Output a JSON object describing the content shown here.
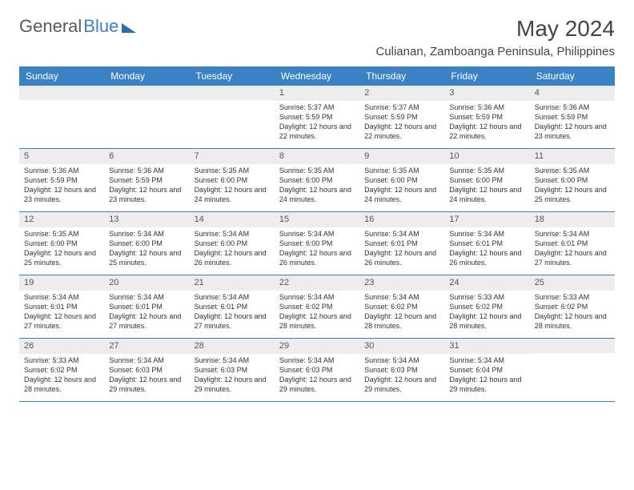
{
  "logo": {
    "text1": "General",
    "text2": "Blue"
  },
  "title": "May 2024",
  "location": "Culianan, Zamboanga Peninsula, Philippines",
  "weekdays": [
    "Sunday",
    "Monday",
    "Tuesday",
    "Wednesday",
    "Thursday",
    "Friday",
    "Saturday"
  ],
  "colors": {
    "header_bg": "#3b82c4",
    "daynum_bg": "#ededed",
    "text": "#333333",
    "logo_gray": "#5a5a5a",
    "logo_blue": "#3b82c4",
    "border": "#3b82c4"
  },
  "fonts": {
    "title_size": 28,
    "location_size": 15,
    "weekday_size": 12,
    "daynum_size": 11,
    "cell_size": 9
  },
  "weeks": [
    [
      {
        "num": "",
        "sunrise": "",
        "sunset": "",
        "daylight": ""
      },
      {
        "num": "",
        "sunrise": "",
        "sunset": "",
        "daylight": ""
      },
      {
        "num": "",
        "sunrise": "",
        "sunset": "",
        "daylight": ""
      },
      {
        "num": "1",
        "sunrise": "Sunrise: 5:37 AM",
        "sunset": "Sunset: 5:59 PM",
        "daylight": "Daylight: 12 hours and 22 minutes."
      },
      {
        "num": "2",
        "sunrise": "Sunrise: 5:37 AM",
        "sunset": "Sunset: 5:59 PM",
        "daylight": "Daylight: 12 hours and 22 minutes."
      },
      {
        "num": "3",
        "sunrise": "Sunrise: 5:36 AM",
        "sunset": "Sunset: 5:59 PM",
        "daylight": "Daylight: 12 hours and 22 minutes."
      },
      {
        "num": "4",
        "sunrise": "Sunrise: 5:36 AM",
        "sunset": "Sunset: 5:59 PM",
        "daylight": "Daylight: 12 hours and 23 minutes."
      }
    ],
    [
      {
        "num": "5",
        "sunrise": "Sunrise: 5:36 AM",
        "sunset": "Sunset: 5:59 PM",
        "daylight": "Daylight: 12 hours and 23 minutes."
      },
      {
        "num": "6",
        "sunrise": "Sunrise: 5:36 AM",
        "sunset": "Sunset: 5:59 PM",
        "daylight": "Daylight: 12 hours and 23 minutes."
      },
      {
        "num": "7",
        "sunrise": "Sunrise: 5:35 AM",
        "sunset": "Sunset: 6:00 PM",
        "daylight": "Daylight: 12 hours and 24 minutes."
      },
      {
        "num": "8",
        "sunrise": "Sunrise: 5:35 AM",
        "sunset": "Sunset: 6:00 PM",
        "daylight": "Daylight: 12 hours and 24 minutes."
      },
      {
        "num": "9",
        "sunrise": "Sunrise: 5:35 AM",
        "sunset": "Sunset: 6:00 PM",
        "daylight": "Daylight: 12 hours and 24 minutes."
      },
      {
        "num": "10",
        "sunrise": "Sunrise: 5:35 AM",
        "sunset": "Sunset: 6:00 PM",
        "daylight": "Daylight: 12 hours and 24 minutes."
      },
      {
        "num": "11",
        "sunrise": "Sunrise: 5:35 AM",
        "sunset": "Sunset: 6:00 PM",
        "daylight": "Daylight: 12 hours and 25 minutes."
      }
    ],
    [
      {
        "num": "12",
        "sunrise": "Sunrise: 5:35 AM",
        "sunset": "Sunset: 6:00 PM",
        "daylight": "Daylight: 12 hours and 25 minutes."
      },
      {
        "num": "13",
        "sunrise": "Sunrise: 5:34 AM",
        "sunset": "Sunset: 6:00 PM",
        "daylight": "Daylight: 12 hours and 25 minutes."
      },
      {
        "num": "14",
        "sunrise": "Sunrise: 5:34 AM",
        "sunset": "Sunset: 6:00 PM",
        "daylight": "Daylight: 12 hours and 26 minutes."
      },
      {
        "num": "15",
        "sunrise": "Sunrise: 5:34 AM",
        "sunset": "Sunset: 6:00 PM",
        "daylight": "Daylight: 12 hours and 26 minutes."
      },
      {
        "num": "16",
        "sunrise": "Sunrise: 5:34 AM",
        "sunset": "Sunset: 6:01 PM",
        "daylight": "Daylight: 12 hours and 26 minutes."
      },
      {
        "num": "17",
        "sunrise": "Sunrise: 5:34 AM",
        "sunset": "Sunset: 6:01 PM",
        "daylight": "Daylight: 12 hours and 26 minutes."
      },
      {
        "num": "18",
        "sunrise": "Sunrise: 5:34 AM",
        "sunset": "Sunset: 6:01 PM",
        "daylight": "Daylight: 12 hours and 27 minutes."
      }
    ],
    [
      {
        "num": "19",
        "sunrise": "Sunrise: 5:34 AM",
        "sunset": "Sunset: 6:01 PM",
        "daylight": "Daylight: 12 hours and 27 minutes."
      },
      {
        "num": "20",
        "sunrise": "Sunrise: 5:34 AM",
        "sunset": "Sunset: 6:01 PM",
        "daylight": "Daylight: 12 hours and 27 minutes."
      },
      {
        "num": "21",
        "sunrise": "Sunrise: 5:34 AM",
        "sunset": "Sunset: 6:01 PM",
        "daylight": "Daylight: 12 hours and 27 minutes."
      },
      {
        "num": "22",
        "sunrise": "Sunrise: 5:34 AM",
        "sunset": "Sunset: 6:02 PM",
        "daylight": "Daylight: 12 hours and 28 minutes."
      },
      {
        "num": "23",
        "sunrise": "Sunrise: 5:34 AM",
        "sunset": "Sunset: 6:02 PM",
        "daylight": "Daylight: 12 hours and 28 minutes."
      },
      {
        "num": "24",
        "sunrise": "Sunrise: 5:33 AM",
        "sunset": "Sunset: 6:02 PM",
        "daylight": "Daylight: 12 hours and 28 minutes."
      },
      {
        "num": "25",
        "sunrise": "Sunrise: 5:33 AM",
        "sunset": "Sunset: 6:02 PM",
        "daylight": "Daylight: 12 hours and 28 minutes."
      }
    ],
    [
      {
        "num": "26",
        "sunrise": "Sunrise: 5:33 AM",
        "sunset": "Sunset: 6:02 PM",
        "daylight": "Daylight: 12 hours and 28 minutes."
      },
      {
        "num": "27",
        "sunrise": "Sunrise: 5:34 AM",
        "sunset": "Sunset: 6:03 PM",
        "daylight": "Daylight: 12 hours and 29 minutes."
      },
      {
        "num": "28",
        "sunrise": "Sunrise: 5:34 AM",
        "sunset": "Sunset: 6:03 PM",
        "daylight": "Daylight: 12 hours and 29 minutes."
      },
      {
        "num": "29",
        "sunrise": "Sunrise: 5:34 AM",
        "sunset": "Sunset: 6:03 PM",
        "daylight": "Daylight: 12 hours and 29 minutes."
      },
      {
        "num": "30",
        "sunrise": "Sunrise: 5:34 AM",
        "sunset": "Sunset: 6:03 PM",
        "daylight": "Daylight: 12 hours and 29 minutes."
      },
      {
        "num": "31",
        "sunrise": "Sunrise: 5:34 AM",
        "sunset": "Sunset: 6:04 PM",
        "daylight": "Daylight: 12 hours and 29 minutes."
      },
      {
        "num": "",
        "sunrise": "",
        "sunset": "",
        "daylight": ""
      }
    ]
  ]
}
